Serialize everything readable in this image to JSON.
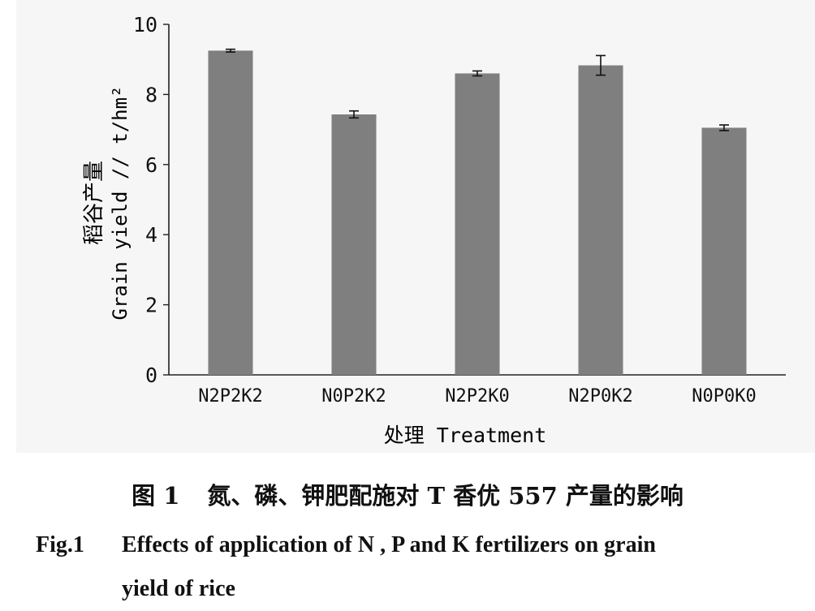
{
  "chart_data": {
    "type": "bar",
    "categories": [
      "N2P2K2",
      "N0P2K2",
      "N2P2K0",
      "N2P0K2",
      "N0P0K0"
    ],
    "values": [
      9.25,
      7.43,
      8.6,
      8.83,
      7.05
    ],
    "error": [
      0.04,
      0.1,
      0.07,
      0.28,
      0.08
    ],
    "ylim": [
      0,
      10
    ],
    "yticks": [
      "0",
      "2",
      "4",
      "6",
      "8",
      "10"
    ],
    "ylabel_cn": "稻谷产量",
    "ylabel_en": "Grain yield // t/hm²",
    "xlabel": "处理 Treatment",
    "bar_color": "#7f7f7f",
    "grid": false,
    "legend": "none"
  },
  "caption": {
    "cn_number": "图 1",
    "cn_text": "氮、磷、钾肥配施对 T 香优 557 产量的影响",
    "en_number": "Fig.1",
    "en_line1": "Effects of application of N , P and K fertilizers on grain",
    "en_line2": "yield of rice"
  }
}
